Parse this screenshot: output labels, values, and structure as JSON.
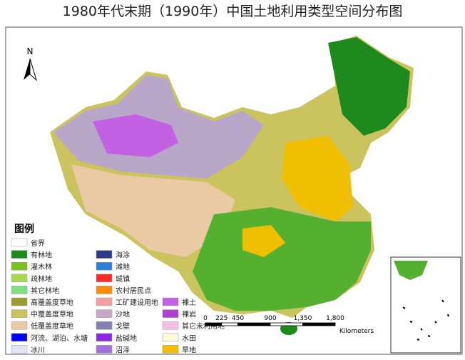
{
  "title": "1980年代末期（1990年）中国土地利用类型空间分布图",
  "north": "N",
  "legend": {
    "title": "图例",
    "columns": [
      [
        {
          "label": "省界",
          "color": "#ffffff"
        },
        {
          "label": "有林地",
          "color": "#1e8a1e"
        },
        {
          "label": "灌木林",
          "color": "#7cc21e"
        },
        {
          "label": "疏林地",
          "color": "#a9d94c"
        },
        {
          "label": "其它林地",
          "color": "#7fe07f"
        },
        {
          "label": "高覆盖度草地",
          "color": "#9a9a30"
        },
        {
          "label": "中覆盖度草地",
          "color": "#cbc35e"
        },
        {
          "label": "低覆盖度草地",
          "color": "#e9caa3"
        },
        {
          "label": "河流、湖泊、水塘",
          "color": "#0000ff"
        },
        {
          "label": "冰川",
          "color": "#e4e2f7"
        }
      ],
      [
        {
          "label": "海涂",
          "color": "#2c3a8c"
        },
        {
          "label": "滩地",
          "color": "#2a7fd8"
        },
        {
          "label": "城镇",
          "color": "#ff2a2a"
        },
        {
          "label": "农村居民点",
          "color": "#ff8c00"
        },
        {
          "label": "工矿建设用地",
          "color": "#f3a0a0"
        },
        {
          "label": "沙地",
          "color": "#c8a8c8"
        },
        {
          "label": "戈壁",
          "color": "#8282b2"
        },
        {
          "label": "盐碱地",
          "color": "#8a2be2"
        },
        {
          "label": "沼泽",
          "color": "#a070e0"
        }
      ],
      [
        {
          "label": "裸土",
          "color": "#c262e2"
        },
        {
          "label": "裸岩",
          "color": "#b040d0"
        },
        {
          "label": "其它未利用地",
          "color": "#f2c2e2"
        },
        {
          "label": "水田",
          "color": "#fff8dc"
        },
        {
          "label": "旱地",
          "color": "#f0c000"
        }
      ]
    ]
  },
  "scale_bar": {
    "ticks": [
      "0",
      "225",
      "450",
      "900",
      "1,350",
      "1,800"
    ],
    "unit": "Kilometers"
  }
}
